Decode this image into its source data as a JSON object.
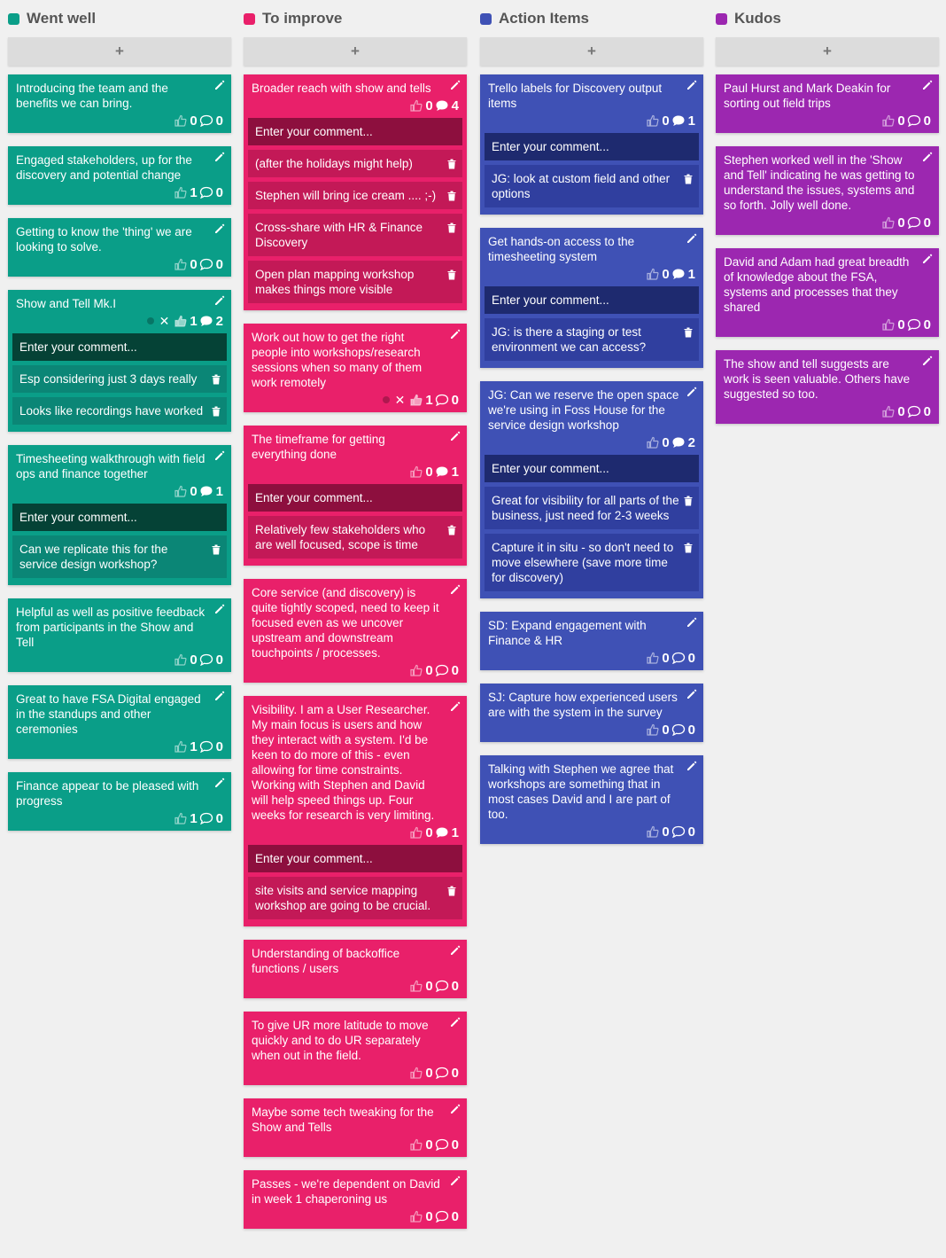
{
  "board": {
    "columns": [
      {
        "title": "Went well",
        "color": "#0a9e88",
        "theme": "green",
        "add_label": "+",
        "cards": [
          {
            "text": "Introducing the team and the benefits we can bring.",
            "votes": "0",
            "comments_count": "0",
            "comments": []
          },
          {
            "text": "Engaged stakeholders, up for the discovery and potential change",
            "votes": "1",
            "comments_count": "0",
            "comments": []
          },
          {
            "text": "Getting to know the 'thing' we are looking to solve.",
            "votes": "0",
            "comments_count": "0",
            "comments": []
          },
          {
            "text": "Show and Tell Mk.I",
            "votes": "1",
            "comments_count": "2",
            "voted": true,
            "comments": [
              "Esp considering just 3 days really",
              "Looks like recordings have worked"
            ]
          },
          {
            "text": "Timesheeting walkthrough with field ops and finance together",
            "votes": "0",
            "comments_count": "1",
            "comments": [
              "Can we replicate this for the service design workshop?"
            ]
          },
          {
            "text": "Helpful as well as positive feedback from participants in the Show and Tell",
            "votes": "0",
            "comments_count": "0",
            "comments": []
          },
          {
            "text": "Great to have FSA Digital engaged in the standups and other ceremonies",
            "votes": "1",
            "comments_count": "0",
            "comments": []
          },
          {
            "text": "Finance appear to be pleased with progress",
            "votes": "1",
            "comments_count": "0",
            "comments": []
          }
        ]
      },
      {
        "title": "To improve",
        "color": "#e9206a",
        "theme": "pink",
        "add_label": "+",
        "cards": [
          {
            "text": "Broader reach with show and tells",
            "votes": "0",
            "comments_count": "4",
            "comments": [
              "(after the holidays might help)",
              "Stephen will bring ice cream .... ;-)",
              "Cross-share with HR & Finance Discovery",
              "Open plan mapping workshop makes things more visible"
            ]
          },
          {
            "text": "Work out how to get the right people into workshops/research sessions when so many of them work remotely",
            "votes": "1",
            "comments_count": "0",
            "voted": true,
            "comments": []
          },
          {
            "text": "The timeframe for getting everything done",
            "votes": "0",
            "comments_count": "1",
            "comments": [
              "Relatively few stakeholders who are well focused, scope is time"
            ]
          },
          {
            "text": "Core service (and discovery) is quite tightly scoped, need to keep it focused even as we uncover upstream and downstream touchpoints / processes.",
            "votes": "0",
            "comments_count": "0",
            "comments": []
          },
          {
            "text": "Visibility. I am a User Researcher. My main focus is users and how they interact with a system. I'd be keen to do more of this - even allowing for time constraints. Working with Stephen and David will help speed things up. Four weeks for research is very limiting.",
            "votes": "0",
            "comments_count": "1",
            "comments": [
              "site visits and service mapping workshop are going to be crucial."
            ]
          },
          {
            "text": "Understanding of backoffice functions / users",
            "votes": "0",
            "comments_count": "0",
            "comments": []
          },
          {
            "text": "To give UR more latitude to move quickly and to do UR separately when out in the field.",
            "votes": "0",
            "comments_count": "0",
            "comments": []
          },
          {
            "text": "Maybe some tech tweaking for the Show and Tells",
            "votes": "0",
            "comments_count": "0",
            "comments": []
          },
          {
            "text": "Passes - we're dependent on David in week 1 chaperoning us",
            "votes": "0",
            "comments_count": "0",
            "comments": []
          }
        ]
      },
      {
        "title": "Action Items",
        "color": "#3f51b5",
        "theme": "blue",
        "add_label": "+",
        "cards": [
          {
            "text": "Trello labels for Discovery output items",
            "votes": "0",
            "comments_count": "1",
            "comments": [
              "JG: look at custom field and other options"
            ]
          },
          {
            "text": "Get hands-on access to the timesheeting system",
            "votes": "0",
            "comments_count": "1",
            "comments": [
              "JG: is there a staging or test environment we can access?"
            ]
          },
          {
            "text": "JG: Can we reserve the open space we're using in Foss House for the service design workshop",
            "votes": "0",
            "comments_count": "2",
            "comments": [
              "Great for visibility for all parts of the business, just need for 2-3 weeks",
              "Capture it in situ - so don't need to move elsewhere (save more time for discovery)"
            ]
          },
          {
            "text": "SD: Expand engagement with Finance & HR",
            "votes": "0",
            "comments_count": "0",
            "comments": []
          },
          {
            "text": "SJ: Capture how experienced users are with the system in the survey",
            "votes": "0",
            "comments_count": "0",
            "comments": []
          },
          {
            "text": "Talking with Stephen we agree that workshops are something that in most cases David and I are part of too.",
            "votes": "0",
            "comments_count": "0",
            "comments": []
          }
        ]
      },
      {
        "title": "Kudos",
        "color": "#9c27b0",
        "theme": "purple",
        "add_label": "+",
        "cards": [
          {
            "text": "Paul Hurst and Mark Deakin for sorting out field trips",
            "votes": "0",
            "comments_count": "0",
            "comments": []
          },
          {
            "text": "Stephen worked well in the 'Show and Tell' indicating he was getting to understand the issues, systems and so forth. Jolly well done.",
            "votes": "0",
            "comments_count": "0",
            "comments": []
          },
          {
            "text": "David and Adam had great breadth of knowledge about the FSA, systems and processes that they shared",
            "votes": "0",
            "comments_count": "0",
            "comments": []
          },
          {
            "text": "The show and tell suggests are work is seen valuable. Others have suggested so too.",
            "votes": "0",
            "comments_count": "0",
            "comments": []
          }
        ]
      }
    ],
    "comment_placeholder": "Enter your comment...",
    "icons": {
      "edit": "pencil-icon",
      "vote": "thumbs-up-icon",
      "comments": "speech-bubble-icon",
      "delete": "trash-icon",
      "unvote": "close-icon"
    }
  }
}
